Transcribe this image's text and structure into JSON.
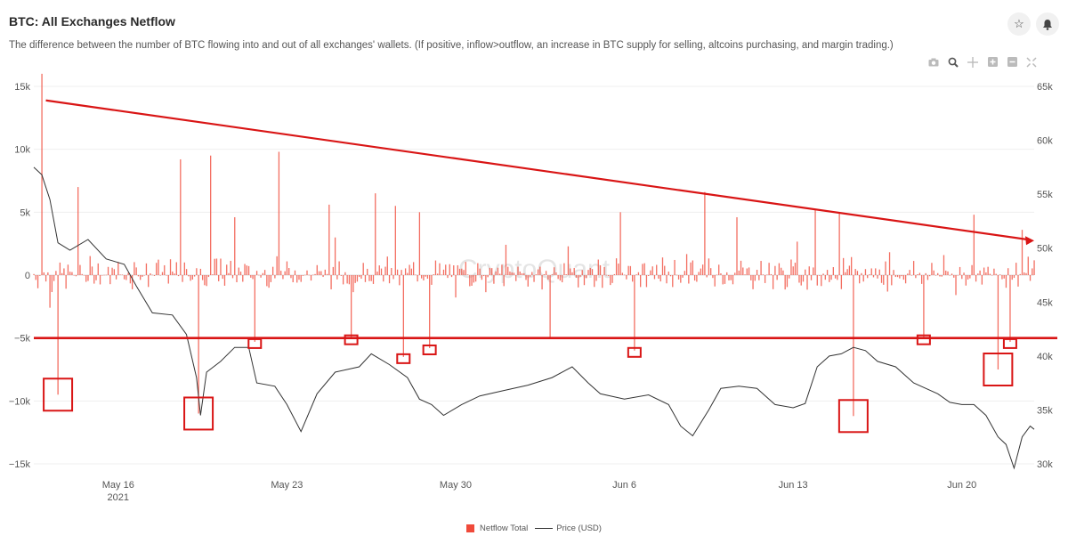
{
  "header": {
    "title": "BTC: All Exchanges Netflow",
    "subtitle": "The difference between the number of BTC flowing into and out of all exchanges' wallets. (If positive, inflow>outflow, an increase in BTC supply for selling, altcoins purchasing, and margin trading.)",
    "favorite_icon": "star-icon",
    "notify_icon": "bell-icon"
  },
  "toolbar": {
    "icons": [
      "camera-icon",
      "zoom-icon",
      "pan-icon",
      "zoom-in-icon",
      "zoom-out-icon",
      "reset-axes-icon"
    ]
  },
  "watermark": "CryptoQuant",
  "colors": {
    "netflow": "#f04a3a",
    "price": "#333333",
    "annotation": "#d91515"
  },
  "chart_data": {
    "type": "bar",
    "x_ticks": [
      {
        "label": "May 16",
        "sub": "2021",
        "x": "2021-05-16"
      },
      {
        "label": "May 23",
        "sub": "",
        "x": "2021-05-23"
      },
      {
        "label": "May 30",
        "sub": "",
        "x": "2021-05-30"
      },
      {
        "label": "Jun 6",
        "sub": "",
        "x": "2021-06-06"
      },
      {
        "label": "Jun 13",
        "sub": "",
        "x": "2021-06-13"
      },
      {
        "label": "Jun 20",
        "sub": "",
        "x": "2021-06-20"
      }
    ],
    "xlim": [
      "2021-05-12T12:00",
      "2021-06-23T00:00"
    ],
    "y_left": {
      "ticks": [
        15000,
        10000,
        5000,
        0,
        -5000,
        -10000,
        -15000
      ],
      "labels": [
        "15k",
        "10k",
        "5k",
        "0",
        "−5k",
        "−10k",
        "−15k"
      ],
      "range": [
        -15000,
        15000
      ]
    },
    "y_right": {
      "ticks": [
        65000,
        60000,
        55000,
        50000,
        45000,
        40000,
        35000,
        30000
      ],
      "labels": [
        "65k",
        "60k",
        "55k",
        "50k",
        "45k",
        "40k",
        "35k",
        "30k"
      ],
      "range": [
        30000,
        65000
      ]
    },
    "legend": [
      "Netflow Total",
      "Price (USD)"
    ],
    "series": [
      {
        "name": "Netflow Total",
        "kind": "bar",
        "peaks": [
          {
            "x": "2021-05-12T20:00",
            "y": 16000
          },
          {
            "x": "2021-05-13T12:00",
            "y": -9500
          },
          {
            "x": "2021-05-14T08:00",
            "y": 7000
          },
          {
            "x": "2021-05-19T20:00",
            "y": 9500
          },
          {
            "x": "2021-05-18T14:00",
            "y": 9200
          },
          {
            "x": "2021-05-19T08:00",
            "y": -11000
          },
          {
            "x": "2021-05-20T20:00",
            "y": 4600
          },
          {
            "x": "2021-05-21T16:00",
            "y": -5300
          },
          {
            "x": "2021-05-22T16:00",
            "y": 9800
          },
          {
            "x": "2021-05-24T18:00",
            "y": 5600
          },
          {
            "x": "2021-05-25T16:00",
            "y": -5000
          },
          {
            "x": "2021-05-26T16:00",
            "y": 6500
          },
          {
            "x": "2021-05-27T12:00",
            "y": 5500
          },
          {
            "x": "2021-05-27T20:00",
            "y": -6500
          },
          {
            "x": "2021-05-28T12:00",
            "y": 5000
          },
          {
            "x": "2021-05-28T22:00",
            "y": -5800
          },
          {
            "x": "2021-06-02T22:00",
            "y": -5000
          },
          {
            "x": "2021-06-05T20:00",
            "y": 5000
          },
          {
            "x": "2021-06-06T10:00",
            "y": -6000
          },
          {
            "x": "2021-06-09T08:00",
            "y": 6600
          },
          {
            "x": "2021-06-10T16:00",
            "y": 4600
          },
          {
            "x": "2021-06-13T22:00",
            "y": 5200
          },
          {
            "x": "2021-06-14T22:00",
            "y": 5000
          },
          {
            "x": "2021-06-15T12:00",
            "y": -11200
          },
          {
            "x": "2021-06-18T10:00",
            "y": -5000
          },
          {
            "x": "2021-06-20T12:00",
            "y": 4800
          },
          {
            "x": "2021-06-21T12:00",
            "y": -7500
          },
          {
            "x": "2021-06-22T00:00",
            "y": -5300
          },
          {
            "x": "2021-06-22T12:00",
            "y": 3600
          }
        ]
      },
      {
        "name": "Price (USD)",
        "kind": "line",
        "points": [
          {
            "x": "2021-05-12T12:00",
            "y": 57500
          },
          {
            "x": "2021-05-12T20:00",
            "y": 56800
          },
          {
            "x": "2021-05-13T04:00",
            "y": 54500
          },
          {
            "x": "2021-05-13T12:00",
            "y": 50500
          },
          {
            "x": "2021-05-14T00:00",
            "y": 49800
          },
          {
            "x": "2021-05-14T18:00",
            "y": 50800
          },
          {
            "x": "2021-05-15T12:00",
            "y": 49000
          },
          {
            "x": "2021-05-16T06:00",
            "y": 48500
          },
          {
            "x": "2021-05-16T18:00",
            "y": 46500
          },
          {
            "x": "2021-05-17T10:00",
            "y": 44000
          },
          {
            "x": "2021-05-18T06:00",
            "y": 43800
          },
          {
            "x": "2021-05-18T20:00",
            "y": 42000
          },
          {
            "x": "2021-05-19T06:00",
            "y": 38000
          },
          {
            "x": "2021-05-19T10:00",
            "y": 34500
          },
          {
            "x": "2021-05-19T16:00",
            "y": 38500
          },
          {
            "x": "2021-05-20T06:00",
            "y": 39500
          },
          {
            "x": "2021-05-20T20:00",
            "y": 40800
          },
          {
            "x": "2021-05-21T10:00",
            "y": 40800
          },
          {
            "x": "2021-05-21T18:00",
            "y": 37500
          },
          {
            "x": "2021-05-22T12:00",
            "y": 37200
          },
          {
            "x": "2021-05-23T00:00",
            "y": 35500
          },
          {
            "x": "2021-05-23T14:00",
            "y": 33000
          },
          {
            "x": "2021-05-24T06:00",
            "y": 36500
          },
          {
            "x": "2021-05-25T00:00",
            "y": 38500
          },
          {
            "x": "2021-05-26T00:00",
            "y": 39000
          },
          {
            "x": "2021-05-26T12:00",
            "y": 40200
          },
          {
            "x": "2021-05-27T06:00",
            "y": 39200
          },
          {
            "x": "2021-05-28T00:00",
            "y": 38000
          },
          {
            "x": "2021-05-28T12:00",
            "y": 36000
          },
          {
            "x": "2021-05-29T00:00",
            "y": 35500
          },
          {
            "x": "2021-05-29T12:00",
            "y": 34500
          },
          {
            "x": "2021-05-30T06:00",
            "y": 35500
          },
          {
            "x": "2021-05-31T00:00",
            "y": 36300
          },
          {
            "x": "2021-06-01T00:00",
            "y": 36800
          },
          {
            "x": "2021-06-02T00:00",
            "y": 37300
          },
          {
            "x": "2021-06-03T00:00",
            "y": 38000
          },
          {
            "x": "2021-06-03T20:00",
            "y": 39000
          },
          {
            "x": "2021-06-04T12:00",
            "y": 37500
          },
          {
            "x": "2021-06-05T00:00",
            "y": 36500
          },
          {
            "x": "2021-06-06T00:00",
            "y": 36000
          },
          {
            "x": "2021-06-07T00:00",
            "y": 36400
          },
          {
            "x": "2021-06-07T20:00",
            "y": 35500
          },
          {
            "x": "2021-06-08T08:00",
            "y": 33500
          },
          {
            "x": "2021-06-08T20:00",
            "y": 32600
          },
          {
            "x": "2021-06-09T12:00",
            "y": 35000
          },
          {
            "x": "2021-06-10T00:00",
            "y": 37000
          },
          {
            "x": "2021-06-10T18:00",
            "y": 37200
          },
          {
            "x": "2021-06-11T12:00",
            "y": 37000
          },
          {
            "x": "2021-06-12T06:00",
            "y": 35500
          },
          {
            "x": "2021-06-13T00:00",
            "y": 35200
          },
          {
            "x": "2021-06-13T12:00",
            "y": 35600
          },
          {
            "x": "2021-06-14T00:00",
            "y": 39000
          },
          {
            "x": "2021-06-14T12:00",
            "y": 40000
          },
          {
            "x": "2021-06-15T00:00",
            "y": 40200
          },
          {
            "x": "2021-06-15T12:00",
            "y": 40800
          },
          {
            "x": "2021-06-16T00:00",
            "y": 40500
          },
          {
            "x": "2021-06-16T12:00",
            "y": 39500
          },
          {
            "x": "2021-06-17T06:00",
            "y": 39000
          },
          {
            "x": "2021-06-18T00:00",
            "y": 37500
          },
          {
            "x": "2021-06-18T12:00",
            "y": 37000
          },
          {
            "x": "2021-06-19T00:00",
            "y": 36500
          },
          {
            "x": "2021-06-19T12:00",
            "y": 35700
          },
          {
            "x": "2021-06-20T00:00",
            "y": 35500
          },
          {
            "x": "2021-06-20T12:00",
            "y": 35500
          },
          {
            "x": "2021-06-21T00:00",
            "y": 34500
          },
          {
            "x": "2021-06-21T12:00",
            "y": 32500
          },
          {
            "x": "2021-06-21T20:00",
            "y": 31800
          },
          {
            "x": "2021-06-22T04:00",
            "y": 29600
          },
          {
            "x": "2021-06-22T12:00",
            "y": 32500
          },
          {
            "x": "2021-06-22T20:00",
            "y": 33500
          },
          {
            "x": "2021-06-23T00:00",
            "y": 33200
          }
        ]
      }
    ],
    "annotations": {
      "trend_arrow": {
        "from": {
          "x": "2021-05-13T00:00",
          "price": 63700
        },
        "to": {
          "x": "2021-06-23T00:00",
          "price": 50700
        }
      },
      "support_line": {
        "netflow": -5000
      },
      "boxes": [
        {
          "x": "2021-05-13T12:00",
          "y": -9500
        },
        {
          "x": "2021-05-19T08:00",
          "y": -11000
        },
        {
          "x": "2021-05-21T16:00",
          "y": -5300
        },
        {
          "x": "2021-05-25T16:00",
          "y": -5000
        },
        {
          "x": "2021-05-27T20:00",
          "y": -6500
        },
        {
          "x": "2021-05-28T22:00",
          "y": -5800
        },
        {
          "x": "2021-06-06T10:00",
          "y": -6000
        },
        {
          "x": "2021-06-15T12:00",
          "y": -11200
        },
        {
          "x": "2021-06-18T10:00",
          "y": -5000
        },
        {
          "x": "2021-06-21T12:00",
          "y": -7500
        },
        {
          "x": "2021-06-22T00:00",
          "y": -5300
        }
      ]
    }
  },
  "legend_labels": {
    "netflow": "Netflow Total",
    "price": "Price (USD)"
  }
}
